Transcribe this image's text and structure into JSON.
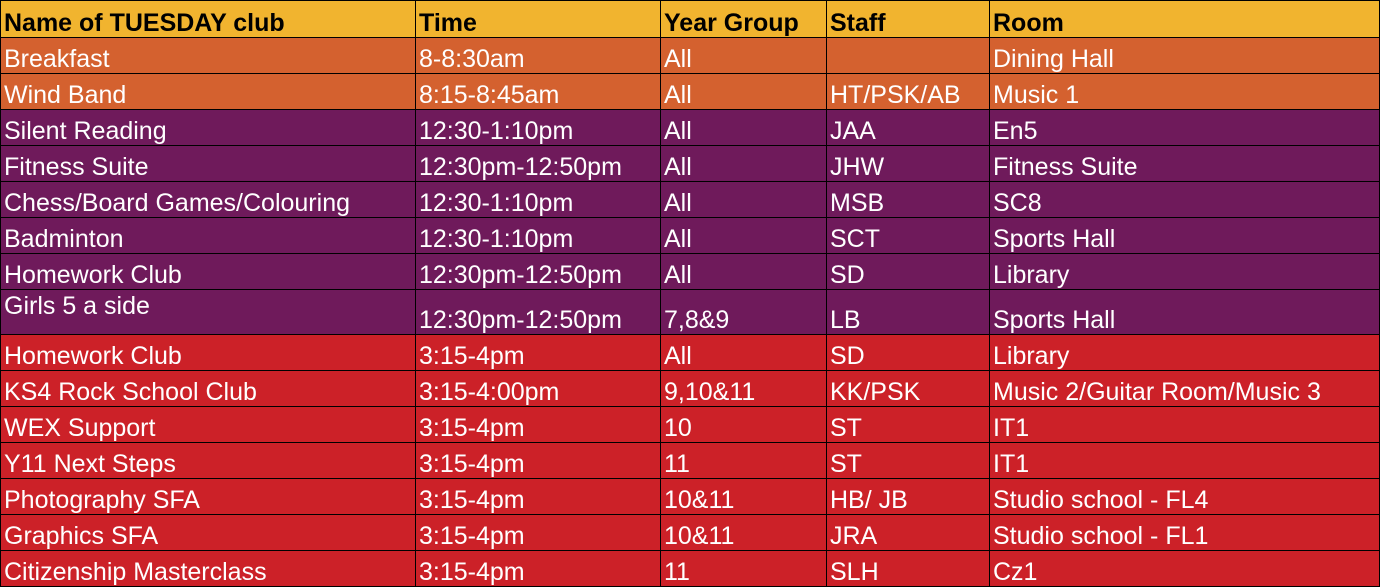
{
  "table": {
    "header": [
      "Name of TUESDAY club",
      "Time",
      "Year Group",
      "Staff",
      "Room"
    ],
    "rows": [
      [
        "Breakfast",
        "8-8:30am",
        "All",
        null,
        "Dining Hall"
      ],
      [
        "Wind Band",
        "8:15-8:45am",
        "All",
        "HT/PSK/AB",
        "Music 1"
      ],
      [
        "Silent Reading",
        "12:30-1:10pm",
        "All",
        "JAA",
        "En5"
      ],
      [
        "Fitness Suite",
        "12:30pm-12:50pm",
        "All",
        "JHW",
        "Fitness Suite"
      ],
      [
        "Chess/Board Games/Colouring",
        "12:30-1:10pm",
        "All",
        "MSB",
        "SC8"
      ],
      [
        "Badminton",
        "12:30-1:10pm",
        "All",
        "SCT",
        "Sports Hall"
      ],
      [
        "Homework Club",
        "12:30pm-12:50pm",
        "All",
        "SD",
        "Library"
      ],
      [
        "Girls 5 a side",
        "12:30pm-12:50pm",
        "7,8&9",
        "LB",
        "Sports Hall"
      ],
      [
        "Homework Club",
        "3:15-4pm",
        "All",
        "SD",
        "Library"
      ],
      [
        "KS4 Rock School Club",
        "3:15-4:00pm",
        "9,10&11",
        "KK/PSK",
        "Music 2/Guitar Room/Music 3"
      ],
      [
        "WEX Support",
        "3:15-4pm",
        "10",
        "ST",
        "IT1"
      ],
      [
        "Y11 Next Steps",
        "3:15-4pm",
        "11",
        "ST",
        "IT1"
      ],
      [
        "Photography SFA",
        "3:15-4pm",
        "10&11",
        "HB/ JB",
        "Studio school - FL4"
      ],
      [
        "Graphics SFA",
        "3:15-4pm",
        "10&11",
        "JRA",
        "Studio school - FL1"
      ],
      [
        "Citizenship Masterclass",
        "3:15-4pm",
        "11",
        "SLH",
        "Cz1"
      ]
    ]
  }
}
